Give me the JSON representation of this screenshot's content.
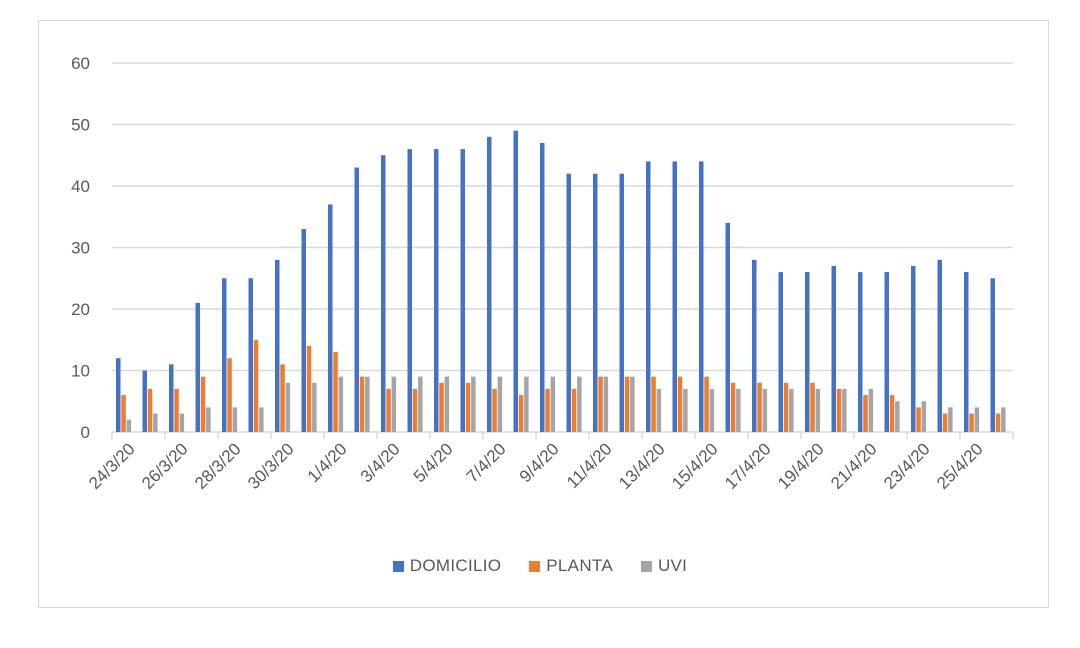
{
  "chart_data": {
    "type": "bar",
    "title": "",
    "xlabel": "",
    "ylabel": "",
    "ylim": [
      0,
      60
    ],
    "yticks": [
      0,
      10,
      20,
      30,
      40,
      50,
      60
    ],
    "grid": true,
    "legend_position": "bottom",
    "categories": [
      "24/3/20",
      "25/3/20",
      "26/3/20",
      "27/3/20",
      "28/3/20",
      "29/3/20",
      "30/3/20",
      "31/3/20",
      "1/4/20",
      "2/4/20",
      "3/4/20",
      "4/4/20",
      "5/4/20",
      "6/4/20",
      "7/4/20",
      "8/4/20",
      "9/4/20",
      "10/4/20",
      "11/4/20",
      "12/4/20",
      "13/4/20",
      "14/4/20",
      "15/4/20",
      "16/4/20",
      "17/4/20",
      "18/4/20",
      "19/4/20",
      "20/4/20",
      "21/4/20",
      "22/4/20",
      "23/4/20",
      "24/4/20",
      "25/4/20",
      "26/4/20"
    ],
    "visible_tick_labels": [
      "24/3/20",
      "26/3/20",
      "28/3/20",
      "30/3/20",
      "1/4/20",
      "3/4/20",
      "5/4/20",
      "7/4/20",
      "9/4/20",
      "11/4/20",
      "13/4/20",
      "15/4/20",
      "17/4/20",
      "19/4/20",
      "21/4/20",
      "23/4/20",
      "25/4/20"
    ],
    "series": [
      {
        "name": "DOMICILIO",
        "color": "#4472c4",
        "values": [
          12,
          10,
          11,
          21,
          25,
          25,
          28,
          33,
          37,
          43,
          45,
          46,
          46,
          46,
          48,
          49,
          47,
          42,
          42,
          42,
          44,
          44,
          44,
          34,
          28,
          26,
          26,
          27,
          26,
          26,
          27,
          28,
          26,
          25
        ]
      },
      {
        "name": "PLANTA",
        "color": "#ed7d31",
        "values": [
          6,
          7,
          7,
          9,
          12,
          15,
          11,
          14,
          13,
          9,
          7,
          7,
          8,
          8,
          7,
          6,
          7,
          7,
          9,
          9,
          9,
          9,
          9,
          8,
          8,
          8,
          8,
          7,
          6,
          6,
          4,
          3,
          3,
          3
        ]
      },
      {
        "name": "UVI",
        "color": "#a5a5a5",
        "values": [
          2,
          3,
          3,
          4,
          4,
          4,
          8,
          8,
          9,
          9,
          9,
          9,
          9,
          9,
          9,
          9,
          9,
          9,
          9,
          9,
          7,
          7,
          7,
          7,
          7,
          7,
          7,
          7,
          7,
          5,
          5,
          4,
          4,
          4
        ]
      }
    ]
  },
  "legend": {
    "items": [
      {
        "label": "DOMICILIO",
        "color": "#4472c4"
      },
      {
        "label": "PLANTA",
        "color": "#ed7d31"
      },
      {
        "label": "UVI",
        "color": "#a5a5a5"
      }
    ]
  }
}
